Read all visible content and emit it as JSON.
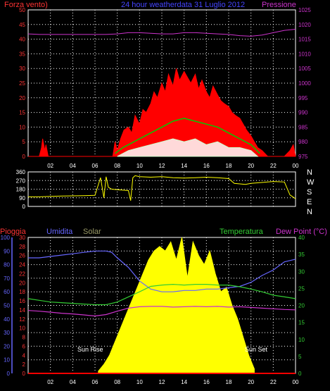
{
  "header": {
    "left_label": "Forza vento)",
    "title": "24 hour weatherdata  31 Luglio 2012",
    "right_label": "Pressione"
  },
  "colors": {
    "background": "#000000",
    "grid": "#ffffff",
    "frame": "#ffffff",
    "wind": "#ff0000",
    "wind_avg": "#00cc00",
    "wind_low": "#ffffff",
    "pressure": "#cc33cc",
    "direction": "#ffff00",
    "rain": "#ff0000",
    "humidity": "#6666ff",
    "solar": "#ffff00",
    "temperature": "#33cc33",
    "dewpoint": "#cc33cc",
    "left_axis_text": "#ff3333",
    "right_axis_text": "#cc33cc",
    "direction_axis_text": "#ffffff",
    "humidity_axis_text": "#6666ff",
    "temperature_axis_text": "#33cc33"
  },
  "chart_data": [
    {
      "type": "line",
      "name": "wind-pressure-panel",
      "xlabel_ticks": [
        "02",
        "04",
        "06",
        "08",
        "10",
        "12",
        "14",
        "16",
        "18",
        "20",
        "22",
        "00"
      ],
      "xlim": [
        0,
        24
      ],
      "left_axis": {
        "ticks": [
          0,
          5,
          10,
          15,
          20,
          25,
          30,
          35,
          40,
          45,
          50
        ],
        "ylim": [
          0,
          50
        ]
      },
      "right_axis": {
        "ticks": [
          975,
          980,
          985,
          990,
          995,
          1000,
          1005,
          1010,
          1015,
          1020,
          1025
        ],
        "ylim": [
          975,
          1025
        ]
      },
      "series": [
        {
          "name": "Forza vento",
          "axis": "left",
          "x": [
            0,
            0.5,
            1,
            1.2,
            1.3,
            1.5,
            1.6,
            1.8,
            2,
            3,
            4,
            5,
            6,
            7,
            7.6,
            7.8,
            8,
            8.3,
            8.6,
            9,
            9.3,
            9.6,
            10,
            10.3,
            10.6,
            11,
            11.3,
            11.6,
            12,
            12.3,
            12.6,
            13,
            13.3,
            13.6,
            14,
            14.3,
            14.6,
            15,
            15.3,
            15.6,
            16,
            16.3,
            16.6,
            17,
            17.3,
            17.6,
            18,
            18.3,
            18.6,
            19,
            19.3,
            19.6,
            20,
            20.3,
            20.6,
            21,
            21.5,
            22,
            23,
            23.5,
            23.8,
            24
          ],
          "y": [
            0,
            0,
            0,
            3,
            6,
            2,
            4,
            0,
            0,
            0,
            0,
            0,
            0,
            0,
            0,
            5,
            2,
            6,
            9,
            10,
            8,
            14,
            11,
            16,
            15,
            18,
            22,
            20,
            25,
            22,
            28,
            24,
            30,
            26,
            29,
            27,
            25,
            28,
            23,
            26,
            22,
            20,
            24,
            21,
            19,
            18,
            17,
            15,
            14,
            13,
            11,
            9,
            7,
            5,
            3,
            2,
            0,
            0,
            0,
            2,
            4,
            0
          ]
        },
        {
          "name": "wind average",
          "axis": "left",
          "x": [
            7.8,
            8.5,
            9,
            10,
            11,
            12,
            13,
            14,
            15,
            16,
            17,
            18,
            19,
            20,
            20.8
          ],
          "y": [
            1,
            3,
            4,
            6,
            8,
            10,
            12,
            13,
            12,
            11,
            10,
            8,
            6,
            4,
            1
          ]
        },
        {
          "name": "wind minimum",
          "axis": "left",
          "x": [
            8,
            8.5,
            9,
            10,
            11,
            12,
            13,
            14,
            15,
            16,
            17,
            18,
            19,
            20,
            20.6
          ],
          "y": [
            0,
            1,
            2,
            3,
            4,
            5,
            6,
            5,
            6,
            4,
            5,
            3,
            3,
            2,
            0
          ]
        },
        {
          "name": "Pressione",
          "axis": "right",
          "x": [
            0,
            1,
            2,
            3,
            4,
            5,
            6,
            7,
            8,
            9,
            10,
            11,
            12,
            13,
            14,
            15,
            16,
            17,
            18,
            19,
            20,
            21,
            22,
            23,
            24
          ],
          "y": [
            1016.8,
            1016.6,
            1016.6,
            1016.6,
            1016.6,
            1016.6,
            1016.6,
            1016.6,
            1016.8,
            1017.2,
            1017.2,
            1017.0,
            1016.8,
            1016.8,
            1017.2,
            1017.2,
            1017.0,
            1016.8,
            1016.6,
            1016.2,
            1016.0,
            1016.4,
            1017.2,
            1018.0,
            1018.4
          ]
        }
      ]
    },
    {
      "type": "line",
      "name": "direction-panel",
      "xlim": [
        0,
        24
      ],
      "left_axis": {
        "ticks": [
          0,
          90,
          180,
          270,
          360
        ],
        "ylim": [
          0,
          360
        ]
      },
      "right_axis_labels": [
        "N",
        "W",
        "S",
        "E",
        "N"
      ],
      "series": [
        {
          "name": "wind direction",
          "x": [
            0,
            1,
            2,
            3,
            4,
            5,
            6,
            6.5,
            6.8,
            7,
            7.2,
            7.5,
            8,
            8.5,
            9,
            9.2,
            9.4,
            9.6,
            10,
            11,
            12,
            13,
            14,
            15,
            16,
            17,
            18,
            18.5,
            19,
            19.5,
            20,
            21,
            22,
            23,
            23.5,
            24
          ],
          "y": [
            100,
            100,
            105,
            108,
            110,
            112,
            115,
            300,
            90,
            310,
            200,
            180,
            175,
            170,
            165,
            60,
            300,
            320,
            310,
            305,
            310,
            300,
            295,
            300,
            305,
            300,
            290,
            240,
            235,
            230,
            240,
            250,
            260,
            255,
            120,
            80
          ]
        }
      ]
    },
    {
      "type": "area",
      "name": "rain-humidity-solar-temperature-panel",
      "xlim": [
        0,
        24
      ],
      "axis_titles": {
        "rain": "Pioggia",
        "humidity": "Umidita",
        "solar": "Solar",
        "temperature": "Temperatura",
        "dewpoint": "Dew Point (°C)"
      },
      "humidity_axis": {
        "ticks": [
          0,
          10,
          20,
          30,
          40,
          50,
          60,
          70,
          80,
          90,
          100
        ],
        "ylim": [
          0,
          100
        ]
      },
      "rain_axis": {
        "ticks": [
          0,
          2,
          4,
          6,
          8,
          10,
          12,
          14,
          16,
          18,
          20,
          22,
          24,
          26,
          28,
          30
        ],
        "ylim": [
          0,
          30
        ]
      },
      "temperature_axis": {
        "ticks": [
          0,
          5,
          10,
          15,
          20,
          25,
          30,
          35,
          40
        ],
        "ylim": [
          0,
          40
        ]
      },
      "annotations": {
        "sunrise": "Sun Rise",
        "sunset": "Sun Set"
      },
      "series": [
        {
          "name": "Umidita",
          "x": [
            0,
            1,
            2,
            3,
            4,
            5,
            6,
            7,
            7.5,
            8,
            9,
            10,
            11,
            12,
            13,
            14,
            15,
            16,
            17,
            18,
            19,
            20,
            21,
            22,
            23,
            24
          ],
          "y": [
            85,
            85,
            86,
            87,
            88,
            89,
            90,
            90,
            89,
            85,
            78,
            68,
            62,
            60,
            60,
            61,
            61,
            62,
            62,
            63,
            64,
            67,
            72,
            76,
            82,
            84
          ]
        },
        {
          "name": "Temperatura",
          "x": [
            0,
            1,
            2,
            3,
            4,
            5,
            6,
            7,
            8,
            9,
            10,
            11,
            12,
            13,
            14,
            15,
            16,
            17,
            18,
            19,
            20,
            21,
            22,
            23,
            24
          ],
          "y": [
            22,
            21.5,
            21,
            20.8,
            20.6,
            20.4,
            20.2,
            20.2,
            21,
            22.5,
            24,
            25.6,
            26.0,
            26.2,
            26.0,
            26.2,
            26.2,
            26.0,
            26.0,
            25.5,
            24.8,
            24,
            23,
            22.5,
            22
          ]
        },
        {
          "name": "Dew Point",
          "x": [
            0,
            1,
            2,
            3,
            4,
            5,
            6,
            7,
            8,
            9,
            10,
            11,
            12,
            13,
            14,
            15,
            16,
            17,
            18,
            19,
            20,
            21,
            22,
            23,
            24
          ],
          "y": [
            18.5,
            18.3,
            18.0,
            17.7,
            17.5,
            17.2,
            16.9,
            17.3,
            18.3,
            19.2,
            19.6,
            19.7,
            19.7,
            19.5,
            19.6,
            19.7,
            19.6,
            19.7,
            19.5,
            19.6,
            19.4,
            19.2,
            19.0,
            18.8,
            18.7
          ]
        },
        {
          "name": "Solar",
          "x": [
            6.3,
            6.8,
            7.3,
            7.8,
            8.3,
            8.8,
            9.3,
            9.8,
            10.3,
            10.8,
            11.3,
            11.8,
            12.3,
            12.8,
            13.3,
            13.8,
            14.3,
            14.8,
            15.3,
            15.8,
            16.3,
            16.8,
            17.3,
            17.8,
            18.3,
            18.8,
            19.3,
            19.8,
            20.3
          ],
          "y": [
            0.5,
            2,
            4,
            7,
            10,
            13,
            16,
            19,
            22,
            25,
            27,
            28,
            27,
            29,
            25,
            30,
            21,
            29,
            26,
            24,
            27,
            22,
            18,
            19,
            15,
            12,
            8,
            4,
            1
          ]
        },
        {
          "name": "Pioggia",
          "x": [
            0,
            24
          ],
          "y": [
            0,
            0
          ]
        }
      ]
    }
  ]
}
